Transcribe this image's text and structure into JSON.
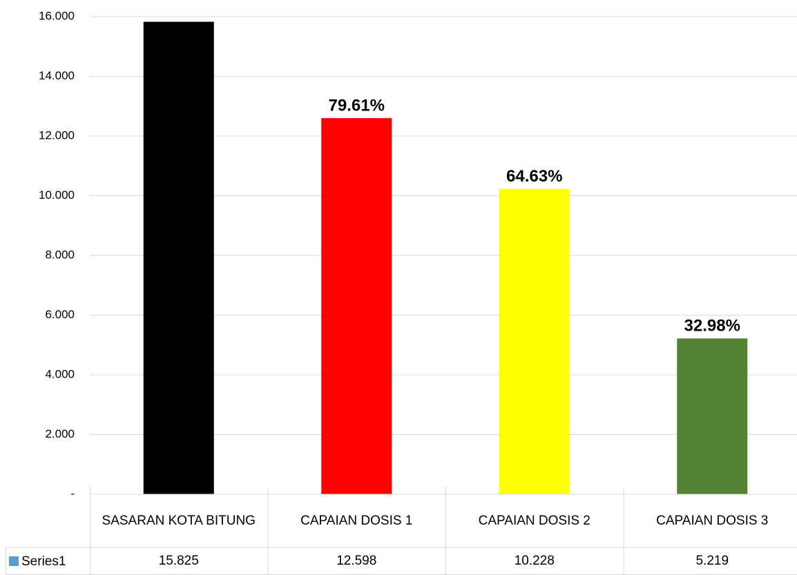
{
  "chart_data": {
    "type": "bar",
    "categories": [
      "SASARAN KOTA BITUNG",
      "CAPAIAN DOSIS 1",
      "CAPAIAN DOSIS 2",
      "CAPAIAN DOSIS 3"
    ],
    "series": [
      {
        "name": "Series1",
        "color": "#5b9bd5",
        "values": [
          15825,
          12598,
          10228,
          5219
        ],
        "value_labels": [
          "15.825",
          "12.598",
          "10.228",
          "5.219"
        ]
      }
    ],
    "bar_colors": [
      "#000000",
      "#ff0000",
      "#ffff00",
      "#548235"
    ],
    "bar_labels": [
      null,
      "79.61%",
      "64.63%",
      "32.98%"
    ],
    "ylim": [
      0,
      16000
    ],
    "yticks": [
      {
        "value": 0,
        "label": "-"
      },
      {
        "value": 2000,
        "label": "2.000"
      },
      {
        "value": 4000,
        "label": "4.000"
      },
      {
        "value": 6000,
        "label": "6.000"
      },
      {
        "value": 8000,
        "label": "8.000"
      },
      {
        "value": 10000,
        "label": "10.000"
      },
      {
        "value": 12000,
        "label": "12.000"
      },
      {
        "value": 14000,
        "label": "14.000"
      },
      {
        "value": 16000,
        "label": "16.000"
      }
    ],
    "grid": true,
    "data_table": true
  }
}
